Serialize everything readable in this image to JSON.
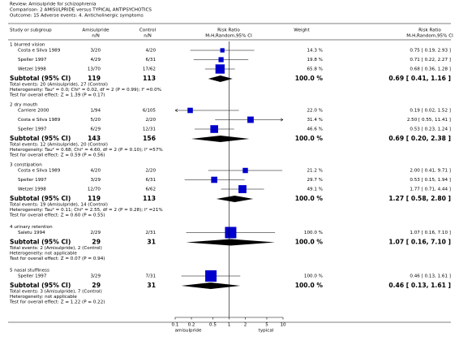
{
  "chart_data": {
    "type": "forest",
    "review": "Review:  Amisulpride for schizophrenia",
    "comparison": "Comparison:  2 AMISULPRIDE versus TYPICAL ANTIPSYCHOTICS",
    "outcome": "Outcome:  15 Adverse events: 4. Anticholinergic symptoms",
    "columns": {
      "study": "Study or subgroup",
      "exp": "Amisulpride",
      "exp_sub": "n/N",
      "ctrl": "Control",
      "ctrl_sub": "n/N",
      "plot": "Risk Ratio",
      "plot_sub": "M-H,Random,95% CI",
      "weight": "Weight",
      "ci": "Risk Ratio",
      "ci_sub": "M-H,Random,95% CI"
    },
    "xlim": [
      0.1,
      10
    ],
    "xticks": [
      0.1,
      0.2,
      0.5,
      1,
      2,
      5,
      10
    ],
    "log": true,
    "xlabel_left": "amisulpride",
    "xlabel_right": "typical",
    "box_color": "#0000cc",
    "groups": [
      {
        "title": "1 blurred vision",
        "studies": [
          {
            "name": "Costa e Silva 1989",
            "exp": "3/20",
            "ctrl": "4/20",
            "rr": 0.75,
            "lo": 0.19,
            "hi": 2.93,
            "weight": 14.3,
            "weight_label": "14.3 %",
            "ci_label": "0.75 [ 0.19, 2.93 ]"
          },
          {
            "name": "Speller 1997",
            "exp": "4/29",
            "ctrl": "6/31",
            "rr": 0.71,
            "lo": 0.22,
            "hi": 2.27,
            "weight": 19.8,
            "weight_label": "19.8 %",
            "ci_label": "0.71 [ 0.22, 2.27 ]"
          },
          {
            "name": "Wetzel 1998",
            "exp": "13/70",
            "ctrl": "17/62",
            "rr": 0.68,
            "lo": 0.36,
            "hi": 1.28,
            "weight": 65.8,
            "weight_label": "65.8 %",
            "ci_label": "0.68 [ 0.36, 1.28 ]"
          }
        ],
        "subtotal": {
          "label": "Subtotal (95% CI)",
          "exp_total": 119,
          "ctrl_total": 113,
          "rr": 0.69,
          "lo": 0.41,
          "hi": 1.16,
          "weight_label": "100.0 %",
          "ci_label": "0.69 [ 0.41, 1.16 ]"
        },
        "total_events": "Total events: 20 (Amisulpride), 27 (Control)",
        "heterogeneity": "Heterogeneity: Tau² = 0.0; Chi² = 0.02, df = 2 (P = 0.99); I² =0.0%",
        "overall": "Test for overall effect: Z = 1.39 (P = 0.17)"
      },
      {
        "title": "2 dry mouth",
        "studies": [
          {
            "name": "Carriere 2000",
            "exp": "1/94",
            "ctrl": "6/105",
            "rr": 0.19,
            "lo": 0.02,
            "hi": 1.52,
            "weight": 22.0,
            "weight_label": "22.0 %",
            "ci_label": "0.19 [ 0.02, 1.52 ]"
          },
          {
            "name": "Costa e Silva 1989",
            "exp": "5/20",
            "ctrl": "2/20",
            "rr": 2.5,
            "lo": 0.55,
            "hi": 11.41,
            "weight": 31.4,
            "weight_label": "31.4 %",
            "ci_label": "2.50 [ 0.55, 11.41 ]"
          },
          {
            "name": "Speller 1997",
            "exp": "6/29",
            "ctrl": "12/31",
            "rr": 0.53,
            "lo": 0.23,
            "hi": 1.24,
            "weight": 46.6,
            "weight_label": "46.6 %",
            "ci_label": "0.53 [ 0.23, 1.24 ]"
          }
        ],
        "subtotal": {
          "label": "Subtotal (95% CI)",
          "exp_total": 143,
          "ctrl_total": 156,
          "rr": 0.69,
          "lo": 0.2,
          "hi": 2.38,
          "weight_label": "100.0 %",
          "ci_label": "0.69 [ 0.20, 2.38 ]"
        },
        "total_events": "Total events: 12 (Amisulpride), 20 (Control)",
        "heterogeneity": "Heterogeneity: Tau² = 0.68; Chi² = 4.60, df = 2 (P = 0.10); I² =57%",
        "overall": "Test for overall effect: Z = 0.59 (P = 0.56)"
      },
      {
        "title": "3 constipation",
        "studies": [
          {
            "name": "Costa e Silva 1989",
            "exp": "4/20",
            "ctrl": "2/20",
            "rr": 2.0,
            "lo": 0.41,
            "hi": 9.71,
            "weight": 21.2,
            "weight_label": "21.2 %",
            "ci_label": "2.00 [ 0.41, 9.71 ]"
          },
          {
            "name": "Speller 1997",
            "exp": "3/29",
            "ctrl": "6/31",
            "rr": 0.53,
            "lo": 0.15,
            "hi": 1.94,
            "weight": 29.7,
            "weight_label": "29.7 %",
            "ci_label": "0.53 [ 0.15, 1.94 ]"
          },
          {
            "name": "Wetzel 1998",
            "exp": "12/70",
            "ctrl": "6/62",
            "rr": 1.77,
            "lo": 0.71,
            "hi": 4.44,
            "weight": 49.1,
            "weight_label": "49.1 %",
            "ci_label": "1.77 [ 0.71, 4.44 ]"
          }
        ],
        "subtotal": {
          "label": "Subtotal (95% CI)",
          "exp_total": 119,
          "ctrl_total": 113,
          "rr": 1.27,
          "lo": 0.58,
          "hi": 2.8,
          "weight_label": "100.0 %",
          "ci_label": "1.27 [ 0.58, 2.80 ]"
        },
        "total_events": "Total events: 19 (Amisulpride), 14 (Control)",
        "heterogeneity": "Heterogeneity: Tau² = 0.11; Chi² = 2.55, df = 2 (P = 0.28); I² =21%",
        "overall": "Test for overall effect: Z = 0.60 (P = 0.55)"
      },
      {
        "title": "4 urinary retention",
        "studies": [
          {
            "name": "Saletu 1994",
            "exp": "2/29",
            "ctrl": "2/31",
            "rr": 1.07,
            "lo": 0.16,
            "hi": 7.1,
            "weight": 100.0,
            "weight_label": "100.0 %",
            "ci_label": "1.07 [ 0.16, 7.10 ]"
          }
        ],
        "subtotal": {
          "label": "Subtotal (95% CI)",
          "exp_total": 29,
          "ctrl_total": 31,
          "rr": 1.07,
          "lo": 0.16,
          "hi": 7.1,
          "weight_label": "100.0 %",
          "ci_label": "1.07 [ 0.16, 7.10 ]"
        },
        "total_events": "Total events: 2 (Amisulpride), 2 (Control)",
        "heterogeneity": "Heterogeneity: not applicable",
        "overall": "Test for overall effect: Z = 0.07 (P = 0.94)"
      },
      {
        "title": "5 nasal stuffiness",
        "studies": [
          {
            "name": "Speller 1997",
            "exp": "3/29",
            "ctrl": "7/31",
            "rr": 0.46,
            "lo": 0.13,
            "hi": 1.61,
            "weight": 100.0,
            "weight_label": "100.0 %",
            "ci_label": "0.46 [ 0.13, 1.61 ]"
          }
        ],
        "subtotal": {
          "label": "Subtotal (95% CI)",
          "exp_total": 29,
          "ctrl_total": 31,
          "rr": 0.46,
          "lo": 0.13,
          "hi": 1.61,
          "weight_label": "100.0 %",
          "ci_label": "0.46 [ 0.13, 1.61 ]"
        },
        "total_events": "Total events: 3 (Amisulpride), 7 (Control)",
        "heterogeneity": "Heterogeneity: not applicable",
        "overall": "Test for overall effect: Z = 1.22 (P = 0.22)"
      }
    ]
  }
}
